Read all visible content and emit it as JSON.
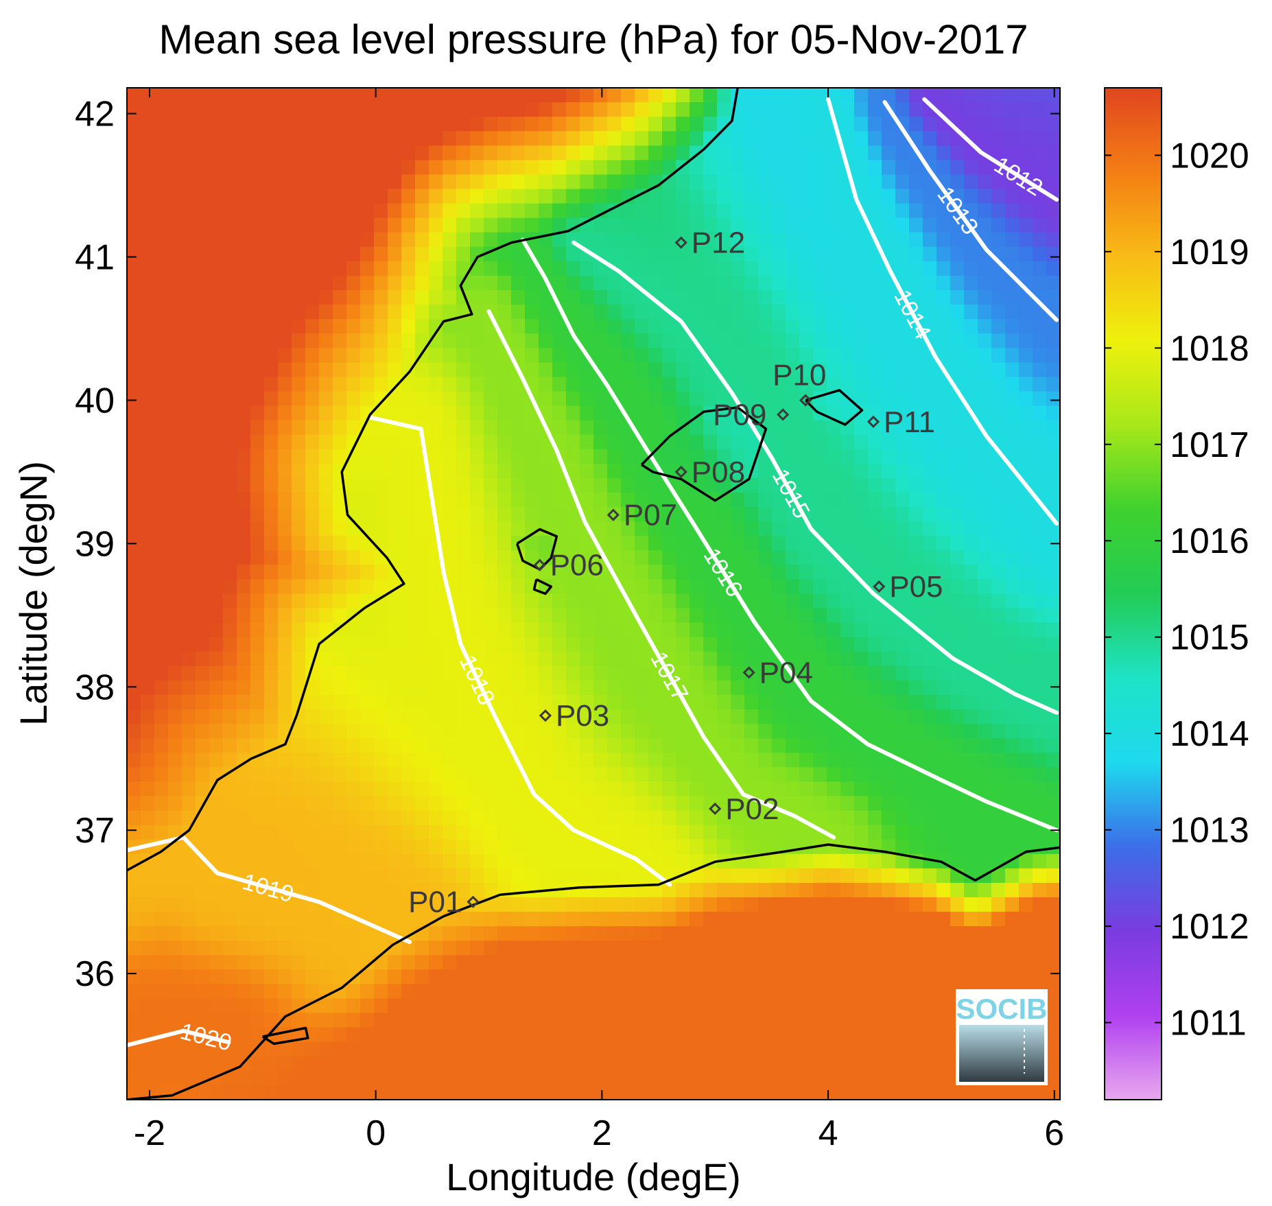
{
  "title": "Mean sea level pressure (hPa) for 05-Nov-2017",
  "xlabel": "Longitude (degE)",
  "ylabel": "Latitude (degN)",
  "logo_text": "SOCIB",
  "chart_data": {
    "type": "heatmap",
    "title": "Mean sea level pressure (hPa) for 05-Nov-2017",
    "variable": "Mean sea level pressure",
    "units": "hPa",
    "date": "05-Nov-2017",
    "xlabel": "Longitude (degE)",
    "ylabel": "Latitude (degN)",
    "xlim": [
      -2.2,
      6.05
    ],
    "ylim": [
      35.12,
      42.18
    ],
    "xticks": [
      -2,
      0,
      2,
      4,
      6
    ],
    "xticklabels": [
      "-2",
      "0",
      "2",
      "4",
      "6"
    ],
    "yticks": [
      36,
      37,
      38,
      39,
      40,
      41,
      42
    ],
    "yticklabels": [
      "36",
      "37",
      "38",
      "39",
      "40",
      "41",
      "42"
    ],
    "colorbar": {
      "range": [
        1010.2,
        1020.7
      ],
      "ticks": [
        1011,
        1012,
        1013,
        1014,
        1015,
        1016,
        1017,
        1018,
        1019,
        1020
      ],
      "ticklabels": [
        "1011",
        "1012",
        "1013",
        "1014",
        "1015",
        "1016",
        "1017",
        "1018",
        "1019",
        "1020"
      ],
      "colormap": [
        "#e8a8ef",
        "#b040f0",
        "#7a3ce0",
        "#3c6ee8",
        "#1ed9ee",
        "#1ee3c6",
        "#22cc55",
        "#3fd12e",
        "#a8e81a",
        "#eef10c",
        "#f8bb16",
        "#f47e14",
        "#e0451f"
      ]
    },
    "contours": [
      {
        "level": 1012,
        "label": "1012",
        "points": [
          [
            4.85,
            42.1
          ],
          [
            5.35,
            41.73
          ],
          [
            6.02,
            41.4
          ]
        ]
      },
      {
        "level": 1013,
        "label": "1013",
        "points": [
          [
            4.5,
            42.08
          ],
          [
            4.9,
            41.6
          ],
          [
            5.4,
            41.05
          ],
          [
            6.02,
            40.56
          ]
        ]
      },
      {
        "level": 1014,
        "label": "1014",
        "points": [
          [
            4.0,
            42.1
          ],
          [
            4.25,
            41.4
          ],
          [
            4.55,
            40.9
          ],
          [
            4.95,
            40.3
          ],
          [
            5.4,
            39.75
          ],
          [
            6.02,
            39.14
          ]
        ]
      },
      {
        "level": 1015,
        "label": "1015",
        "points": [
          [
            1.75,
            41.1
          ],
          [
            2.15,
            40.9
          ],
          [
            2.7,
            40.55
          ],
          [
            3.15,
            40.05
          ],
          [
            3.5,
            39.6
          ],
          [
            3.85,
            39.1
          ],
          [
            4.4,
            38.65
          ],
          [
            5.1,
            38.2
          ],
          [
            5.65,
            37.95
          ],
          [
            6.02,
            37.82
          ]
        ]
      },
      {
        "level": 1016,
        "label": "1016",
        "points": [
          [
            1.3,
            41.12
          ],
          [
            1.5,
            40.85
          ],
          [
            1.75,
            40.45
          ],
          [
            2.05,
            40.1
          ],
          [
            2.4,
            39.65
          ],
          [
            2.8,
            39.15
          ],
          [
            3.35,
            38.45
          ],
          [
            3.85,
            37.9
          ],
          [
            4.35,
            37.6
          ],
          [
            5.0,
            37.35
          ],
          [
            5.4,
            37.2
          ],
          [
            6.02,
            37.0
          ]
        ]
      },
      {
        "level": 1017,
        "label": "1017",
        "points": [
          [
            1.0,
            40.62
          ],
          [
            1.3,
            40.15
          ],
          [
            1.6,
            39.65
          ],
          [
            1.85,
            39.15
          ],
          [
            2.3,
            38.5
          ],
          [
            2.9,
            37.65
          ],
          [
            3.25,
            37.25
          ],
          [
            3.7,
            37.1
          ],
          [
            4.05,
            36.95
          ]
        ]
      },
      {
        "level": 1018,
        "label": "1018",
        "points": [
          [
            -0.05,
            39.88
          ],
          [
            0.4,
            39.8
          ],
          [
            0.5,
            39.3
          ],
          [
            0.6,
            38.8
          ],
          [
            0.75,
            38.3
          ],
          [
            1.05,
            37.8
          ],
          [
            1.4,
            37.25
          ],
          [
            1.75,
            37.0
          ],
          [
            2.3,
            36.8
          ],
          [
            2.6,
            36.62
          ]
        ]
      },
      {
        "level": 1019,
        "label": "1019",
        "points": [
          [
            -2.2,
            36.86
          ],
          [
            -1.7,
            36.95
          ],
          [
            -1.4,
            36.7
          ],
          [
            -0.5,
            36.5
          ],
          [
            0.3,
            36.22
          ]
        ]
      },
      {
        "level": 1020,
        "label": "1020",
        "points": [
          [
            -2.2,
            35.5
          ],
          [
            -1.7,
            35.6
          ],
          [
            -1.3,
            35.52
          ]
        ]
      }
    ],
    "stations": [
      {
        "name": "P01",
        "lon": 0.86,
        "lat": 36.5
      },
      {
        "name": "P02",
        "lon": 3.0,
        "lat": 37.15
      },
      {
        "name": "P03",
        "lon": 1.5,
        "lat": 37.8
      },
      {
        "name": "P04",
        "lon": 3.3,
        "lat": 38.1
      },
      {
        "name": "P05",
        "lon": 4.45,
        "lat": 38.7
      },
      {
        "name": "P06",
        "lon": 1.45,
        "lat": 38.85
      },
      {
        "name": "P07",
        "lon": 2.1,
        "lat": 39.2
      },
      {
        "name": "P08",
        "lon": 2.7,
        "lat": 39.5
      },
      {
        "name": "P09",
        "lon": 3.6,
        "lat": 39.9
      },
      {
        "name": "P10",
        "lon": 3.8,
        "lat": 40.0
      },
      {
        "name": "P11",
        "lon": 4.4,
        "lat": 39.85
      },
      {
        "name": "P12",
        "lon": 2.7,
        "lat": 41.1
      }
    ],
    "coastline": [
      [
        [
          3.2,
          42.18
        ],
        [
          3.15,
          41.95
        ],
        [
          2.9,
          41.75
        ],
        [
          2.5,
          41.5
        ],
        [
          2.2,
          41.38
        ],
        [
          1.7,
          41.18
        ],
        [
          1.2,
          41.1
        ],
        [
          0.9,
          41.0
        ],
        [
          0.75,
          40.8
        ],
        [
          0.85,
          40.6
        ],
        [
          0.6,
          40.55
        ],
        [
          0.3,
          40.2
        ],
        [
          -0.05,
          39.9
        ],
        [
          -0.3,
          39.5
        ],
        [
          -0.25,
          39.2
        ],
        [
          0.1,
          38.9
        ],
        [
          0.25,
          38.72
        ],
        [
          -0.1,
          38.55
        ],
        [
          -0.5,
          38.3
        ],
        [
          -0.7,
          37.8
        ],
        [
          -0.8,
          37.6
        ],
        [
          -1.1,
          37.5
        ],
        [
          -1.4,
          37.35
        ],
        [
          -1.65,
          37.0
        ],
        [
          -1.9,
          36.85
        ],
        [
          -2.2,
          36.72
        ]
      ],
      [
        [
          -2.2,
          35.12
        ],
        [
          -1.8,
          35.15
        ],
        [
          -1.5,
          35.25
        ],
        [
          -1.2,
          35.35
        ],
        [
          -0.8,
          35.7
        ],
        [
          -0.3,
          35.9
        ],
        [
          0.15,
          36.2
        ],
        [
          0.6,
          36.4
        ],
        [
          1.1,
          36.55
        ],
        [
          1.8,
          36.6
        ],
        [
          2.5,
          36.62
        ],
        [
          3.0,
          36.78
        ],
        [
          3.6,
          36.85
        ],
        [
          4.0,
          36.9
        ],
        [
          4.5,
          36.85
        ],
        [
          5.0,
          36.78
        ],
        [
          5.3,
          36.65
        ],
        [
          5.75,
          36.85
        ],
        [
          6.05,
          36.88
        ]
      ],
      [
        [
          2.35,
          39.55
        ],
        [
          2.6,
          39.75
        ],
        [
          2.9,
          39.92
        ],
        [
          3.2,
          39.95
        ],
        [
          3.45,
          39.8
        ],
        [
          3.3,
          39.45
        ],
        [
          3.0,
          39.3
        ],
        [
          2.7,
          39.45
        ],
        [
          2.45,
          39.5
        ],
        [
          2.35,
          39.55
        ]
      ],
      [
        [
          3.8,
          40.0
        ],
        [
          4.1,
          40.07
        ],
        [
          4.3,
          39.93
        ],
        [
          4.15,
          39.83
        ],
        [
          3.9,
          39.92
        ],
        [
          3.8,
          40.0
        ]
      ],
      [
        [
          1.25,
          39.0
        ],
        [
          1.45,
          39.1
        ],
        [
          1.6,
          39.05
        ],
        [
          1.55,
          38.9
        ],
        [
          1.45,
          38.82
        ],
        [
          1.3,
          38.88
        ],
        [
          1.25,
          39.0
        ]
      ],
      [
        [
          1.42,
          38.75
        ],
        [
          1.55,
          38.7
        ],
        [
          1.5,
          38.65
        ],
        [
          1.4,
          38.68
        ],
        [
          1.42,
          38.75
        ]
      ],
      [
        [
          -1.0,
          35.56
        ],
        [
          -0.62,
          35.62
        ],
        [
          -0.6,
          35.55
        ],
        [
          -0.9,
          35.51
        ],
        [
          -1.0,
          35.56
        ]
      ]
    ],
    "grid": false
  }
}
